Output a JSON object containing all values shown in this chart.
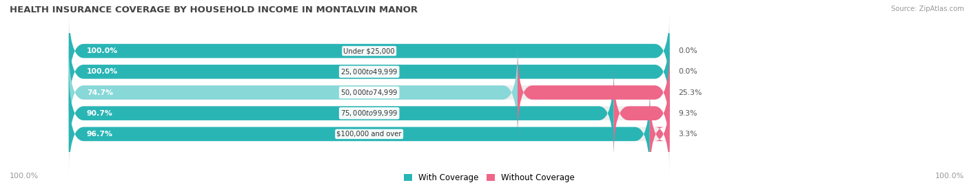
{
  "title": "HEALTH INSURANCE COVERAGE BY HOUSEHOLD INCOME IN MONTALVIN MANOR",
  "source": "Source: ZipAtlas.com",
  "categories": [
    "Under $25,000",
    "$25,000 to $49,999",
    "$50,000 to $74,999",
    "$75,000 to $99,999",
    "$100,000 and over"
  ],
  "with_coverage": [
    100.0,
    100.0,
    74.7,
    90.7,
    96.7
  ],
  "without_coverage": [
    0.0,
    0.0,
    25.3,
    9.3,
    3.3
  ],
  "color_with_dark": "#2ab5b5",
  "color_with_light": "#88d8d8",
  "color_without_dark": "#ee6688",
  "color_without_light": "#f4a0bb",
  "bar_bg_color": "#eeeeee",
  "background_color": "#ffffff",
  "legend_with": "With Coverage",
  "legend_without": "Without Coverage",
  "bottom_left": "100.0%",
  "bottom_right": "100.0%",
  "title_fontsize": 9.5,
  "cat_fontsize": 7.2,
  "val_fontsize": 7.8,
  "tick_fontsize": 8,
  "source_fontsize": 7.2,
  "bar_total": 100.0,
  "threshold_dark": 85.0
}
